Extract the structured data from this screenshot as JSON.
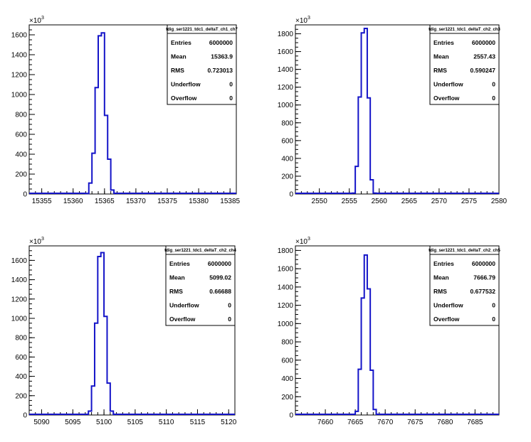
{
  "chart_data": [
    {
      "type": "bar",
      "name": "tdig_ser1221_tdc1_deltaT_ch1_ch7",
      "y_exponent_label": "×10",
      "y_exponent_power": "3",
      "xlim": [
        15353,
        15386
      ],
      "ylim": [
        0,
        1700
      ],
      "xticks": [
        15355,
        15360,
        15365,
        15370,
        15375,
        15380,
        15385
      ],
      "yticks": [
        0,
        200,
        400,
        600,
        800,
        1000,
        1200,
        1400,
        1600
      ],
      "bins": [
        {
          "x": 15361.5,
          "y": 0
        },
        {
          "x": 15362.0,
          "y": 5
        },
        {
          "x": 15362.5,
          "y": 110
        },
        {
          "x": 15363.0,
          "y": 410
        },
        {
          "x": 15363.5,
          "y": 1070
        },
        {
          "x": 15364.0,
          "y": 1590
        },
        {
          "x": 15364.5,
          "y": 1620
        },
        {
          "x": 15365.0,
          "y": 790
        },
        {
          "x": 15365.5,
          "y": 350
        },
        {
          "x": 15366.0,
          "y": 40
        },
        {
          "x": 15366.5,
          "y": 0
        }
      ],
      "bin_width": 0.5,
      "stats": {
        "title": "tdig_ser1221_tdc1_deltaT_ch1_ch7",
        "rows": [
          {
            "key": "Entries",
            "value": "6000000"
          },
          {
            "key": "Mean",
            "value": "15363.9"
          },
          {
            "key": "RMS",
            "value": "0.723013"
          },
          {
            "key": "Underflow",
            "value": "0"
          },
          {
            "key": "Overflow",
            "value": "0"
          }
        ]
      }
    },
    {
      "type": "bar",
      "name": "tdig_ser1221_tdc1_deltaT_ch2_ch3",
      "y_exponent_label": "×10",
      "y_exponent_power": "3",
      "xlim": [
        2546,
        2580
      ],
      "ylim": [
        0,
        1900
      ],
      "xticks": [
        2550,
        2555,
        2560,
        2565,
        2570,
        2575,
        2580
      ],
      "yticks": [
        0,
        200,
        400,
        600,
        800,
        1000,
        1200,
        1400,
        1600,
        1800
      ],
      "bins": [
        {
          "x": 2555.0,
          "y": 0
        },
        {
          "x": 2555.5,
          "y": 10
        },
        {
          "x": 2556.0,
          "y": 310
        },
        {
          "x": 2556.5,
          "y": 1090
        },
        {
          "x": 2557.0,
          "y": 1810
        },
        {
          "x": 2557.5,
          "y": 1860
        },
        {
          "x": 2558.0,
          "y": 1080
        },
        {
          "x": 2558.5,
          "y": 160
        },
        {
          "x": 2559.0,
          "y": 10
        },
        {
          "x": 2559.5,
          "y": 0
        }
      ],
      "bin_width": 0.5,
      "stats": {
        "title": "tdig_ser1221_tdc1_deltaT_ch2_ch3",
        "rows": [
          {
            "key": "Entries",
            "value": "6000000"
          },
          {
            "key": "Mean",
            "value": "2557.43"
          },
          {
            "key": "RMS",
            "value": "0.590247"
          },
          {
            "key": "Underflow",
            "value": "0"
          },
          {
            "key": "Overflow",
            "value": "0"
          }
        ]
      }
    },
    {
      "type": "bar",
      "name": "tdig_ser1221_tdc1_deltaT_ch2_ch4",
      "y_exponent_label": "×10",
      "y_exponent_power": "3",
      "xlim": [
        5088,
        5121
      ],
      "ylim": [
        0,
        1750
      ],
      "xticks": [
        5090,
        5095,
        5100,
        5105,
        5110,
        5115,
        5120
      ],
      "yticks": [
        0,
        200,
        400,
        600,
        800,
        1000,
        1200,
        1400,
        1600
      ],
      "bins": [
        {
          "x": 5097.0,
          "y": 0
        },
        {
          "x": 5097.5,
          "y": 40
        },
        {
          "x": 5098.0,
          "y": 300
        },
        {
          "x": 5098.5,
          "y": 950
        },
        {
          "x": 5099.0,
          "y": 1640
        },
        {
          "x": 5099.5,
          "y": 1680
        },
        {
          "x": 5100.0,
          "y": 1020
        },
        {
          "x": 5100.5,
          "y": 330
        },
        {
          "x": 5101.0,
          "y": 40
        },
        {
          "x": 5101.5,
          "y": 0
        }
      ],
      "bin_width": 0.5,
      "stats": {
        "title": "tdig_ser1221_tdc1_deltaT_ch2_ch4",
        "rows": [
          {
            "key": "Entries",
            "value": "6000000"
          },
          {
            "key": "Mean",
            "value": "5099.02"
          },
          {
            "key": "RMS",
            "value": "0.66688"
          },
          {
            "key": "Underflow",
            "value": "0"
          },
          {
            "key": "Overflow",
            "value": "0"
          }
        ]
      }
    },
    {
      "type": "bar",
      "name": "tdig_ser1221_tdc1_deltaT_ch2_ch5",
      "y_exponent_label": "×10",
      "y_exponent_power": "3",
      "xlim": [
        7655,
        7689
      ],
      "ylim": [
        0,
        1850
      ],
      "xticks": [
        7660,
        7665,
        7670,
        7675,
        7680,
        7685
      ],
      "yticks": [
        0,
        200,
        400,
        600,
        800,
        1000,
        1200,
        1400,
        1600,
        1800
      ],
      "bins": [
        {
          "x": 7664.5,
          "y": 0
        },
        {
          "x": 7665.0,
          "y": 40
        },
        {
          "x": 7665.5,
          "y": 500
        },
        {
          "x": 7666.0,
          "y": 1280
        },
        {
          "x": 7666.5,
          "y": 1750
        },
        {
          "x": 7667.0,
          "y": 1380
        },
        {
          "x": 7667.5,
          "y": 490
        },
        {
          "x": 7668.0,
          "y": 60
        },
        {
          "x": 7668.5,
          "y": 0
        }
      ],
      "bin_width": 0.5,
      "stats": {
        "title": "tdig_ser1221_tdc1_deltaT_ch2_ch5",
        "rows": [
          {
            "key": "Entries",
            "value": "6000000"
          },
          {
            "key": "Mean",
            "value": "7666.79"
          },
          {
            "key": "RMS",
            "value": "0.677532"
          },
          {
            "key": "Underflow",
            "value": "0"
          },
          {
            "key": "Overflow",
            "value": "0"
          }
        ]
      }
    }
  ]
}
